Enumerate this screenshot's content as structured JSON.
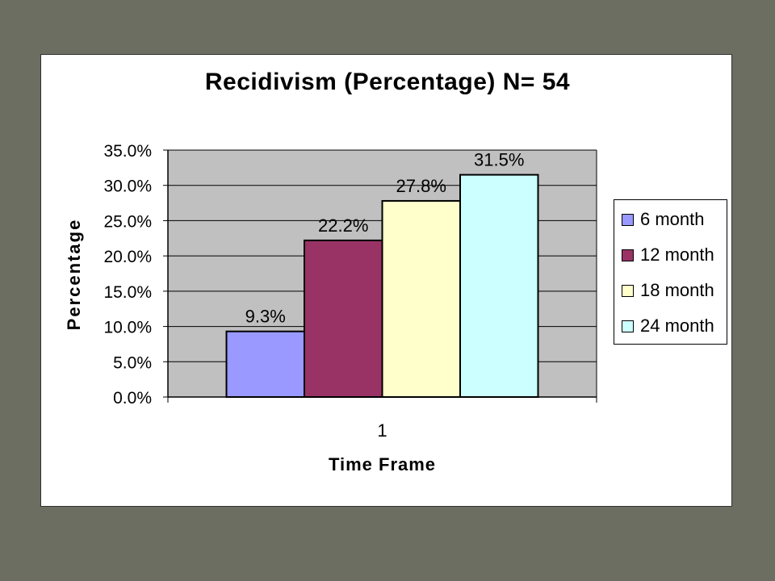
{
  "chart_data": {
    "type": "bar",
    "title": "Recidivism (Percentage) N= 54",
    "xlabel": "Time Frame",
    "ylabel": "Percentage",
    "categories": [
      "1"
    ],
    "series": [
      {
        "name": "6 month",
        "values": [
          9.3
        ],
        "label": "9.3%",
        "color": "#9999ff"
      },
      {
        "name": "12 month",
        "values": [
          22.2
        ],
        "label": "22.2%",
        "color": "#993366"
      },
      {
        "name": "18 month",
        "values": [
          27.8
        ],
        "label": "27.8%",
        "color": "#ffffcc"
      },
      {
        "name": "24 month",
        "values": [
          31.5
        ],
        "label": "31.5%",
        "color": "#ccffff"
      }
    ],
    "ylim": [
      0,
      35
    ],
    "yticks": [
      "0.0%",
      "5.0%",
      "10.0%",
      "15.0%",
      "20.0%",
      "25.0%",
      "30.0%",
      "35.0%"
    ],
    "grid": true,
    "legend_position": "right",
    "plot_background": "#c0c0c0"
  }
}
